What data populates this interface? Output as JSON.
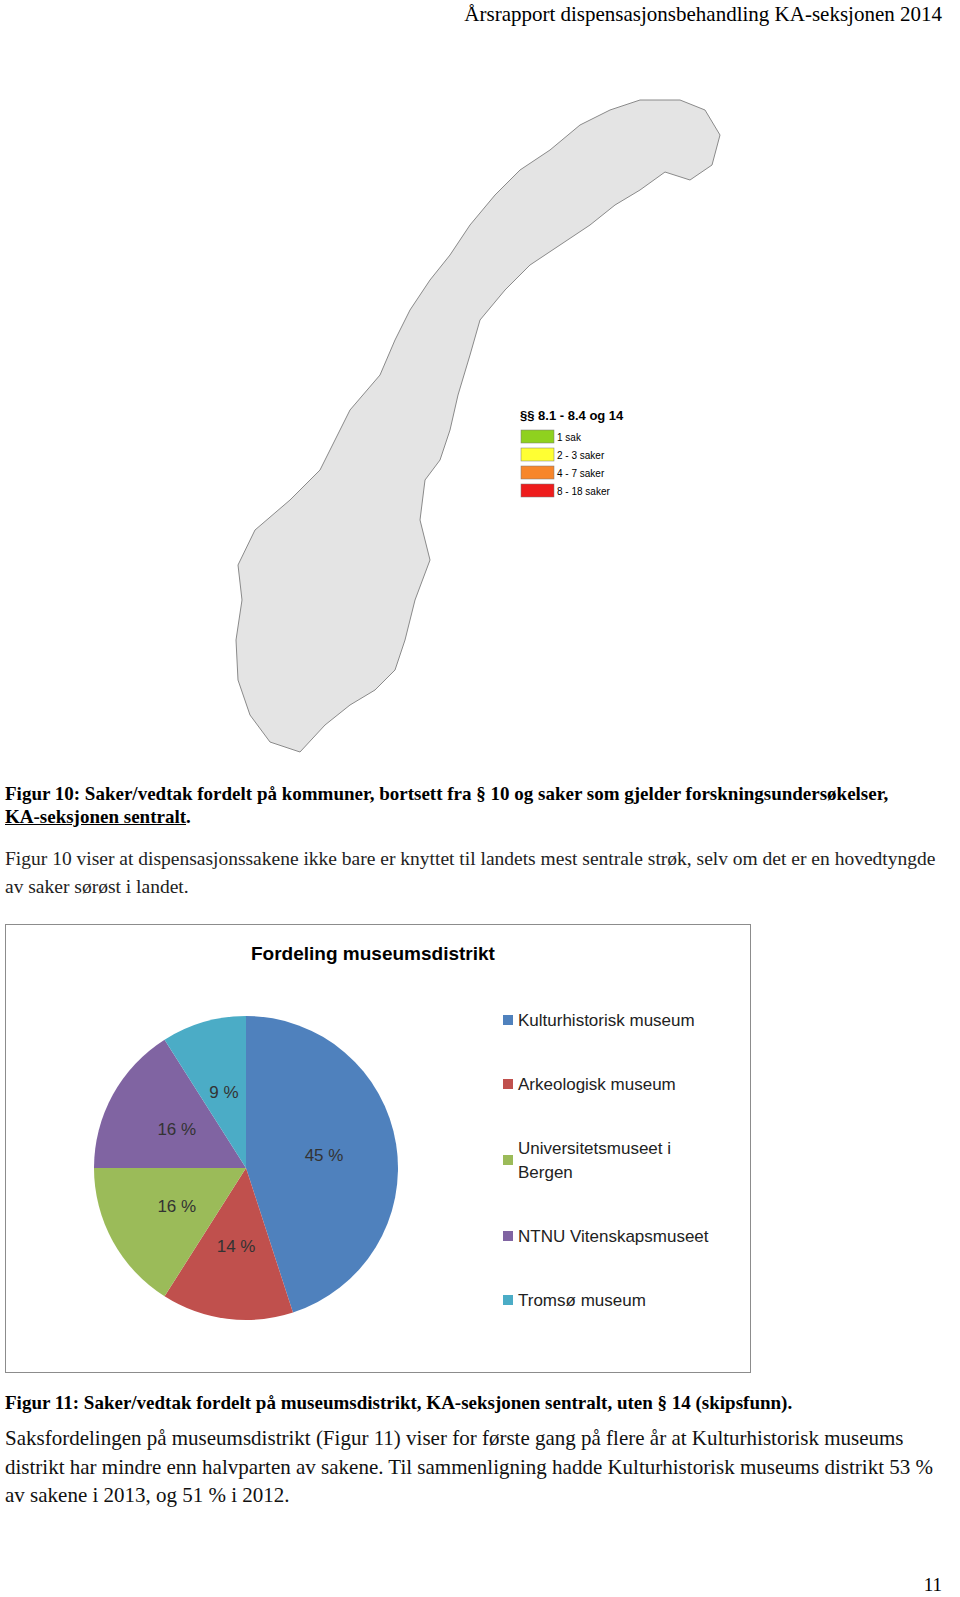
{
  "header": {
    "title": "Årsrapport dispensasjonsbehandling KA-seksjonen 2014"
  },
  "map": {
    "legend_title": "§§ 8.1 - 8.4 og 14",
    "legend": [
      {
        "label": "1 sak",
        "color": "#8fd11f"
      },
      {
        "label": "2 - 3 saker",
        "color": "#ffff33"
      },
      {
        "label": "4 - 7 saker",
        "color": "#f7862b"
      },
      {
        "label": "8 - 18 saker",
        "color": "#ee1c1c"
      }
    ]
  },
  "figure10_caption": [
    {
      "text": "Figur 10: Saker/vedtak fordelt på kommuner, bortsett fra § 10 og saker som gjelder forskningsundersøkelser, ",
      "underline": false
    },
    {
      "text": "KA-seksjonen sentralt",
      "underline": true
    },
    {
      "text": ".",
      "underline": false
    }
  ],
  "paragraph1": "Figur 10 viser at dispensasjonssakene ikke bare er knyttet til landets mest sentrale strøk, selv om det er en hovedtyngde av saker sørøst i landet.",
  "chart_data": {
    "type": "pie",
    "title": "Fordeling museumsdistrikt",
    "categories": [
      "Kulturhistorisk museum",
      "Arkeologisk museum",
      "Universitetsmuseet i Bergen",
      "NTNU Vitenskapsmuseet",
      "Tromsø museum"
    ],
    "values": [
      45,
      14,
      16,
      16,
      9
    ],
    "value_labels": [
      "45 %",
      "14 %",
      "16 %",
      "16 %",
      "9 %"
    ],
    "colors": [
      "#4f81bd",
      "#c0504d",
      "#9bbb59",
      "#8064a2",
      "#4bacc6"
    ],
    "data_labels": true,
    "legend": "right"
  },
  "figure11_caption": "Figur 11: Saker/vedtak fordelt på museumsdistrikt, KA-seksjonen sentralt, uten § 14 (skipsfunn).",
  "paragraph2": "Saksfordelingen på museumsdistrikt (Figur 11) viser for første gang på flere år at Kulturhistorisk museums distrikt har mindre enn halvparten av sakene. Til sammenligning hadde Kulturhistorisk museums distrikt 53 % av sakene i 2013, og 51 % i 2012.",
  "page_number": "11"
}
